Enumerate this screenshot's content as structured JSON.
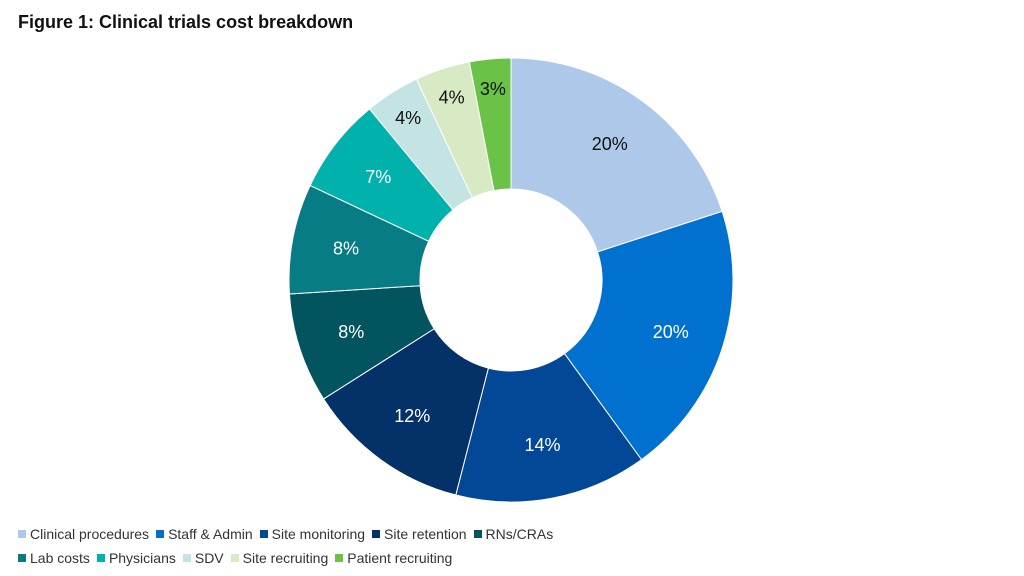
{
  "title": "Figure 1: Clinical trials cost breakdown",
  "chart_data": {
    "type": "pie",
    "donut": true,
    "value_suffix": "%",
    "categories": [
      "Clinical procedures",
      "Staff & Admin",
      "Site monitoring",
      "Site retention",
      "RNs/CRAs",
      "Lab costs",
      "Physicians",
      "SDV",
      "Site recruiting",
      "Patient recruiting"
    ],
    "values": [
      20,
      20,
      14,
      12,
      8,
      8,
      7,
      4,
      4,
      3
    ],
    "colors": [
      "#adc8e8",
      "#0071cf",
      "#034897",
      "#043268",
      "#02545f",
      "#087c84",
      "#00b1ac",
      "#c3e4e2",
      "#d7eac3",
      "#6ac246"
    ],
    "label_colors": [
      "#111111",
      "#ffffff",
      "#ffffff",
      "#ffffff",
      "#ffffff",
      "#ffffff",
      "#ffffff",
      "#111111",
      "#111111",
      "#111111"
    ],
    "legend_position": "bottom-left"
  }
}
